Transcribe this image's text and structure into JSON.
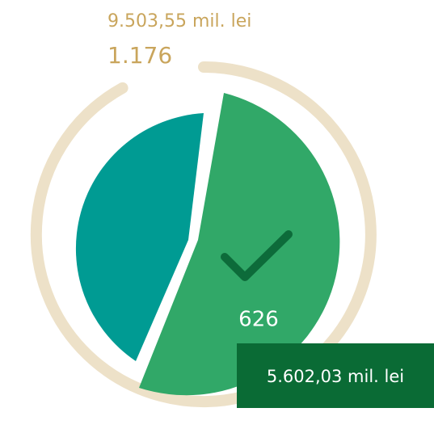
{
  "total": {
    "amount": "9.503,55 mil. lei",
    "count": "1.176"
  },
  "selected": {
    "count": "626",
    "amount": "5.602,03 mil. lei"
  }
}
